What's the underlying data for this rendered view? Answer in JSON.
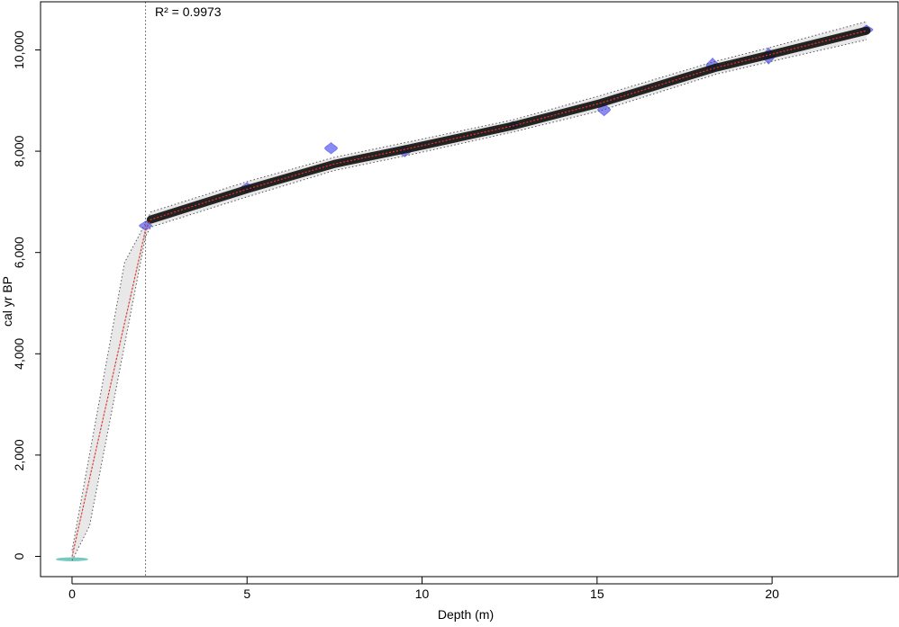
{
  "chart_data": {
    "type": "line",
    "title": "",
    "xlabel": "Depth (m)",
    "ylabel": "cal yr BP",
    "annotation": "R² = 0.9973",
    "xlim": [
      -0.9,
      23.6
    ],
    "ylim": [
      -400,
      10950
    ],
    "grid": false,
    "x_ticks": [
      0,
      5,
      10,
      15,
      20
    ],
    "x_tick_labels": [
      "0",
      "5",
      "10",
      "15",
      "20"
    ],
    "y_ticks": [
      0,
      2000,
      4000,
      6000,
      8000,
      10000
    ],
    "y_tick_labels": [
      "0",
      "2,000",
      "4,000",
      "6,000",
      "8,000",
      "10,000"
    ],
    "hiatus_depth": 2.1,
    "series": [
      {
        "role": "median",
        "color": "#e8312a",
        "x": [
          0,
          2.1,
          2.25,
          5,
          7.5,
          9.6,
          12.6,
          15.1,
          18.4,
          19.9,
          22.7
        ],
        "y": [
          0,
          6450,
          6650,
          7250,
          7750,
          8050,
          8500,
          8950,
          9650,
          9900,
          10380
        ]
      },
      {
        "role": "upper_95",
        "color": "#555555",
        "x": [
          0,
          1.5,
          2.1,
          2.25,
          5,
          7.5,
          9.6,
          12.6,
          15.1,
          18.4,
          19.9,
          22.7
        ],
        "y": [
          120,
          5800,
          6580,
          6800,
          7400,
          7880,
          8180,
          8620,
          9100,
          9780,
          10040,
          10560
        ]
      },
      {
        "role": "lower_95",
        "color": "#555555",
        "x": [
          0,
          0.5,
          2.1,
          2.25,
          5,
          7.5,
          9.6,
          12.6,
          15.1,
          18.4,
          19.9,
          22.7
        ],
        "y": [
          -80,
          600,
          6320,
          6500,
          7100,
          7620,
          7920,
          8380,
          8800,
          9520,
          9760,
          10200
        ]
      }
    ],
    "dates": [
      {
        "depth": 0,
        "age": -40,
        "spread": 60,
        "color": "#5fbfb4"
      },
      {
        "depth": 2.1,
        "age": 6530,
        "spread": 180,
        "color": "#5a5af0"
      },
      {
        "depth": 5.0,
        "age": 7280,
        "spread": 200,
        "color": "#5a5af0"
      },
      {
        "depth": 7.4,
        "age": 8060,
        "spread": 220,
        "color": "#5a5af0"
      },
      {
        "depth": 9.5,
        "age": 8000,
        "spread": 220,
        "color": "#5a5af0"
      },
      {
        "depth": 12.6,
        "age": 8520,
        "spread": 140,
        "color": "#5a5af0"
      },
      {
        "depth": 15.2,
        "age": 8820,
        "spread": 240,
        "color": "#5a5af0"
      },
      {
        "depth": 18.3,
        "age": 9700,
        "spread": 280,
        "color": "#5a5af0"
      },
      {
        "depth": 19.9,
        "age": 9880,
        "spread": 320,
        "color": "#5a5af0"
      },
      {
        "depth": 22.7,
        "age": 10400,
        "spread": 180,
        "color": "#5a5af0"
      }
    ]
  }
}
